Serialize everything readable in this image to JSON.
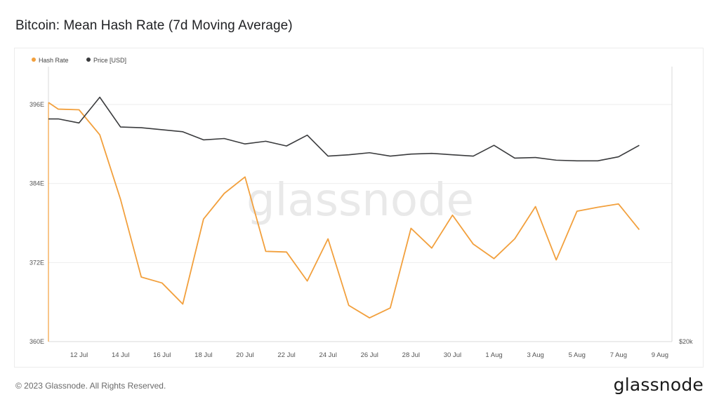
{
  "page": {
    "footer_text": "© 2023 Glassnode. All Rights Reserved.",
    "brand": "glassnode",
    "watermark": "glassnode"
  },
  "colors": {
    "hash_rate": "#f2a03d",
    "price": "#3a3b3d",
    "grid": "#eeeeee",
    "watermark": "#e9e9e9"
  },
  "chart_data": {
    "type": "line",
    "title": "Bitcoin: Mean Hash Rate (7d Moving Average)",
    "grid": true,
    "legend_position": "top-left",
    "x": [
      "11 Jul",
      "12 Jul",
      "13 Jul",
      "14 Jul",
      "15 Jul",
      "16 Jul",
      "17 Jul",
      "18 Jul",
      "19 Jul",
      "20 Jul",
      "21 Jul",
      "22 Jul",
      "23 Jul",
      "24 Jul",
      "25 Jul",
      "26 Jul",
      "27 Jul",
      "28 Jul",
      "29 Jul",
      "30 Jul",
      "31 Jul",
      "1 Aug",
      "2 Aug",
      "3 Aug",
      "4 Aug",
      "5 Aug",
      "6 Aug",
      "7 Aug",
      "8 Aug"
    ],
    "x_ticks": [
      "12 Jul",
      "14 Jul",
      "16 Jul",
      "18 Jul",
      "20 Jul",
      "22 Jul",
      "24 Jul",
      "26 Jul",
      "28 Jul",
      "30 Jul",
      "1 Aug",
      "3 Aug",
      "5 Aug",
      "7 Aug",
      "9 Aug"
    ],
    "y_left": {
      "ticks": [
        "360E",
        "372E",
        "384E",
        "396E"
      ],
      "tick_values": [
        360,
        372,
        384,
        396
      ],
      "range": [
        360,
        396
      ]
    },
    "y_right": {
      "ticks": [
        "$20k"
      ]
    },
    "series": [
      {
        "name": "Hash Rate",
        "axis": "left",
        "first_value": 396.3,
        "values": [
          395.3,
          395.2,
          391.4,
          381.6,
          369.8,
          368.9,
          365.7,
          378.6,
          382.5,
          385.0,
          373.7,
          373.6,
          369.2,
          375.6,
          365.5,
          363.6,
          365.1,
          377.2,
          374.2,
          379.2,
          374.8,
          372.6,
          375.6,
          380.5,
          372.4,
          379.8,
          380.4,
          380.9,
          377.0
        ]
      },
      {
        "name": "Price [USD]",
        "axis": "right",
        "values": [
          30290,
          30230,
          30610,
          30170,
          30160,
          30130,
          30100,
          29980,
          30000,
          29920,
          29960,
          29890,
          30050,
          29740,
          29760,
          29790,
          29740,
          29770,
          29780,
          29760,
          29740,
          29900,
          29710,
          29720,
          29680,
          29670,
          29670,
          29730,
          29900
        ]
      }
    ]
  }
}
